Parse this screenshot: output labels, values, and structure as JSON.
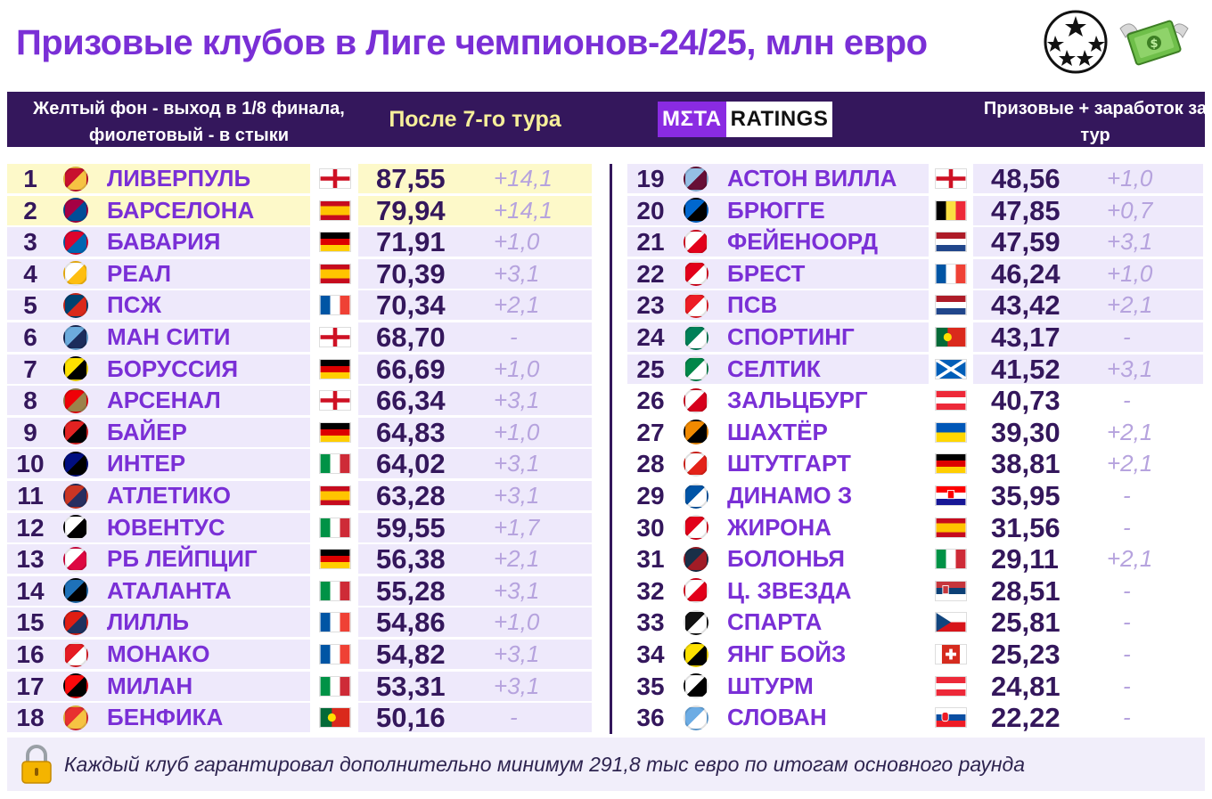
{
  "title": "Призовые клубов в Лиге чемпионов-24/25, млн евро",
  "header": {
    "note": "Желтый фон - выход в 1/8 финала, фиолетовый - в стыки",
    "round": "После 7-го тура",
    "logo_left": "MΣTA",
    "logo_right": "RATINGS",
    "earn": "Призовые + заработок за тур"
  },
  "footer": {
    "text": "Каждый клуб гарантировал дополнительно минимум 291,8 тыс евро по итогам основного раунда"
  },
  "colors": {
    "title": "#7a2fd6",
    "header_bg": "#34175c",
    "top8_bg": "#fdf9c9",
    "playoff_bg": "#eee9fb",
    "delta": "#b6a3de"
  },
  "chart_data": {
    "type": "table",
    "columns": [
      "rank",
      "club",
      "flag",
      "prize_money_eur_m",
      "round_gain_eur_m"
    ],
    "rows": [
      {
        "rank": "1",
        "club": "ЛИВЕРПУЛЬ",
        "crest": "liverpool-crest",
        "flag": "england",
        "value": "87,55",
        "delta": "+14,1",
        "zone": "top8"
      },
      {
        "rank": "2",
        "club": "БАРСЕЛОНА",
        "crest": "barcelona-crest",
        "flag": "spain",
        "value": "79,94",
        "delta": "+14,1",
        "zone": "top8"
      },
      {
        "rank": "3",
        "club": "БАВАРИЯ",
        "crest": "bayern-crest",
        "flag": "germany",
        "value": "71,91",
        "delta": "+1,0",
        "zone": "playoff"
      },
      {
        "rank": "4",
        "club": "РЕАЛ",
        "crest": "real-crest",
        "flag": "spain",
        "value": "70,39",
        "delta": "+3,1",
        "zone": "playoff"
      },
      {
        "rank": "5",
        "club": "ПСЖ",
        "crest": "psg-crest",
        "flag": "france",
        "value": "70,34",
        "delta": "+2,1",
        "zone": "playoff"
      },
      {
        "rank": "6",
        "club": "МАН СИТИ",
        "crest": "mancity-crest",
        "flag": "england",
        "value": "68,70",
        "delta": "-",
        "zone": "playoff"
      },
      {
        "rank": "7",
        "club": "БОРУССИЯ",
        "crest": "bvb-crest",
        "flag": "germany",
        "value": "66,69",
        "delta": "+1,0",
        "zone": "playoff"
      },
      {
        "rank": "8",
        "club": "АРСЕНАЛ",
        "crest": "arsenal-crest",
        "flag": "england",
        "value": "66,34",
        "delta": "+3,1",
        "zone": "playoff"
      },
      {
        "rank": "9",
        "club": "БАЙЕР",
        "crest": "bayer-crest",
        "flag": "germany",
        "value": "64,83",
        "delta": "+1,0",
        "zone": "playoff"
      },
      {
        "rank": "10",
        "club": "ИНТЕР",
        "crest": "inter-crest",
        "flag": "italy",
        "value": "64,02",
        "delta": "+3,1",
        "zone": "playoff"
      },
      {
        "rank": "11",
        "club": "АТЛЕТИКО",
        "crest": "atletico-crest",
        "flag": "spain",
        "value": "63,28",
        "delta": "+3,1",
        "zone": "playoff"
      },
      {
        "rank": "12",
        "club": "ЮВЕНТУС",
        "crest": "juventus-crest",
        "flag": "italy",
        "value": "59,55",
        "delta": "+1,7",
        "zone": "playoff"
      },
      {
        "rank": "13",
        "club": "РБ ЛЕЙПЦИГ",
        "crest": "leipzig-crest",
        "flag": "germany",
        "value": "56,38",
        "delta": "+2,1",
        "zone": "playoff"
      },
      {
        "rank": "14",
        "club": "АТАЛАНТА",
        "crest": "atalanta-crest",
        "flag": "italy",
        "value": "55,28",
        "delta": "+3,1",
        "zone": "playoff"
      },
      {
        "rank": "15",
        "club": "ЛИЛЛЬ",
        "crest": "lille-crest",
        "flag": "france",
        "value": "54,86",
        "delta": "+1,0",
        "zone": "playoff"
      },
      {
        "rank": "16",
        "club": "МОНАКО",
        "crest": "monaco-crest",
        "flag": "france",
        "value": "54,82",
        "delta": "+3,1",
        "zone": "playoff"
      },
      {
        "rank": "17",
        "club": "МИЛАН",
        "crest": "milan-crest",
        "flag": "italy",
        "value": "53,31",
        "delta": "+3,1",
        "zone": "playoff"
      },
      {
        "rank": "18",
        "club": "БЕНФИКА",
        "crest": "benfica-crest",
        "flag": "portugal",
        "value": "50,16",
        "delta": "-",
        "zone": "playoff"
      },
      {
        "rank": "19",
        "club": "АСТОН ВИЛЛА",
        "crest": "astonvilla-crest",
        "flag": "england",
        "value": "48,56",
        "delta": "+1,0",
        "zone": "playoff"
      },
      {
        "rank": "20",
        "club": "БРЮГГЕ",
        "crest": "brugge-crest",
        "flag": "belgium",
        "value": "47,85",
        "delta": "+0,7",
        "zone": "playoff"
      },
      {
        "rank": "21",
        "club": "ФЕЙЕНООРД",
        "crest": "feyenoord-crest",
        "flag": "netherlands",
        "value": "47,59",
        "delta": "+3,1",
        "zone": "playoff"
      },
      {
        "rank": "22",
        "club": "БРЕСТ",
        "crest": "brest-crest",
        "flag": "france",
        "value": "46,24",
        "delta": "+1,0",
        "zone": "playoff"
      },
      {
        "rank": "23",
        "club": "ПСВ",
        "crest": "psv-crest",
        "flag": "netherlands",
        "value": "43,42",
        "delta": "+2,1",
        "zone": "playoff"
      },
      {
        "rank": "24",
        "club": "СПОРТИНГ",
        "crest": "sporting-crest",
        "flag": "portugal",
        "value": "43,17",
        "delta": "-",
        "zone": "playoff"
      },
      {
        "rank": "25",
        "club": "СЕЛТИК",
        "crest": "celtic-crest",
        "flag": "scotland",
        "value": "41,52",
        "delta": "+3,1",
        "zone": "playoff"
      },
      {
        "rank": "26",
        "club": "ЗАЛЬЦБУРГ",
        "crest": "salzburg-crest",
        "flag": "austria",
        "value": "40,73",
        "delta": "-",
        "zone": "none"
      },
      {
        "rank": "27",
        "club": "ШАХТЁР",
        "crest": "shakhtar-crest",
        "flag": "ukraine",
        "value": "39,30",
        "delta": "+2,1",
        "zone": "none"
      },
      {
        "rank": "28",
        "club": "ШТУТГАРТ",
        "crest": "stuttgart-crest",
        "flag": "germany",
        "value": "38,81",
        "delta": "+2,1",
        "zone": "none"
      },
      {
        "rank": "29",
        "club": "ДИНАМО З",
        "crest": "dinamo-crest",
        "flag": "croatia",
        "value": "35,95",
        "delta": "-",
        "zone": "none"
      },
      {
        "rank": "30",
        "club": "ЖИРОНА",
        "crest": "girona-crest",
        "flag": "spain",
        "value": "31,56",
        "delta": "-",
        "zone": "none"
      },
      {
        "rank": "31",
        "club": "БОЛОНЬЯ",
        "crest": "bologna-crest",
        "flag": "italy",
        "value": "29,11",
        "delta": "+2,1",
        "zone": "none"
      },
      {
        "rank": "32",
        "club": "Ц. ЗВЕЗДА",
        "crest": "crvenazvezda-crest",
        "flag": "serbia",
        "value": "28,51",
        "delta": "-",
        "zone": "none"
      },
      {
        "rank": "33",
        "club": "СПАРТА",
        "crest": "sparta-crest",
        "flag": "czech",
        "value": "25,81",
        "delta": "-",
        "zone": "none"
      },
      {
        "rank": "34",
        "club": "ЯНГ БОЙЗ",
        "crest": "youngboys-crest",
        "flag": "switzerland",
        "value": "25,23",
        "delta": "-",
        "zone": "none"
      },
      {
        "rank": "35",
        "club": "ШТУРМ",
        "crest": "sturm-crest",
        "flag": "austria",
        "value": "24,81",
        "delta": "-",
        "zone": "none"
      },
      {
        "rank": "36",
        "club": "СЛОВАН",
        "crest": "slovan-crest",
        "flag": "slovakia",
        "value": "22,22",
        "delta": "-",
        "zone": "none"
      }
    ]
  }
}
